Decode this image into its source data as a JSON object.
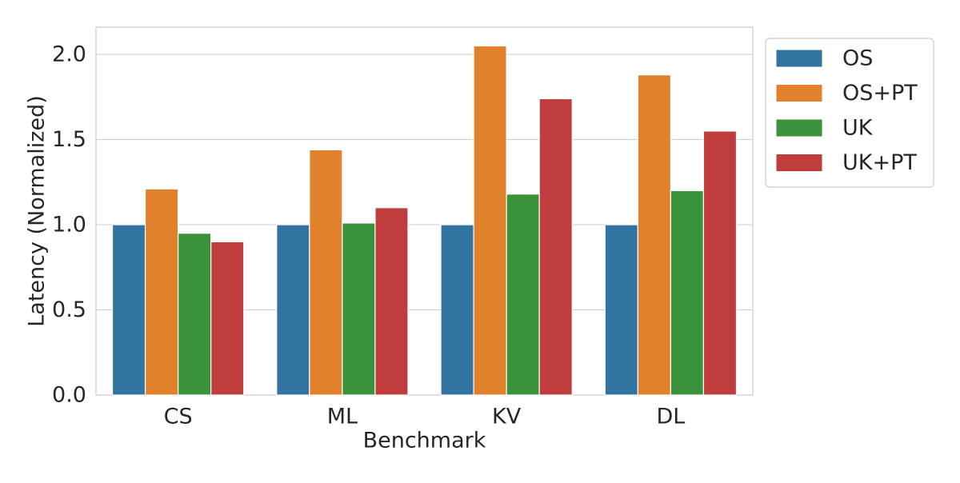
{
  "chart_data": {
    "type": "bar",
    "title": "",
    "xlabel": "Benchmark",
    "ylabel": "Latency (Normalized)",
    "categories": [
      "CS",
      "ML",
      "KV",
      "DL"
    ],
    "series": [
      {
        "name": "OS",
        "color": "#3274a1",
        "values": [
          1.0,
          1.0,
          1.0,
          1.0
        ]
      },
      {
        "name": "OS+PT",
        "color": "#e1812c",
        "values": [
          1.21,
          1.44,
          2.05,
          1.88
        ]
      },
      {
        "name": "UK",
        "color": "#3a923a",
        "values": [
          0.95,
          1.01,
          1.18,
          1.2
        ]
      },
      {
        "name": "UK+PT",
        "color": "#c03d3e",
        "values": [
          0.9,
          1.1,
          1.74,
          1.55
        ]
      }
    ],
    "ylim": [
      0,
      2.16
    ],
    "yticks": [
      0.0,
      0.5,
      1.0,
      1.5,
      2.0
    ],
    "ytick_labels": [
      "0.0",
      "0.5",
      "1.0",
      "1.5",
      "2.0"
    ],
    "grid": true,
    "legend_position": "outside-upper-right"
  }
}
